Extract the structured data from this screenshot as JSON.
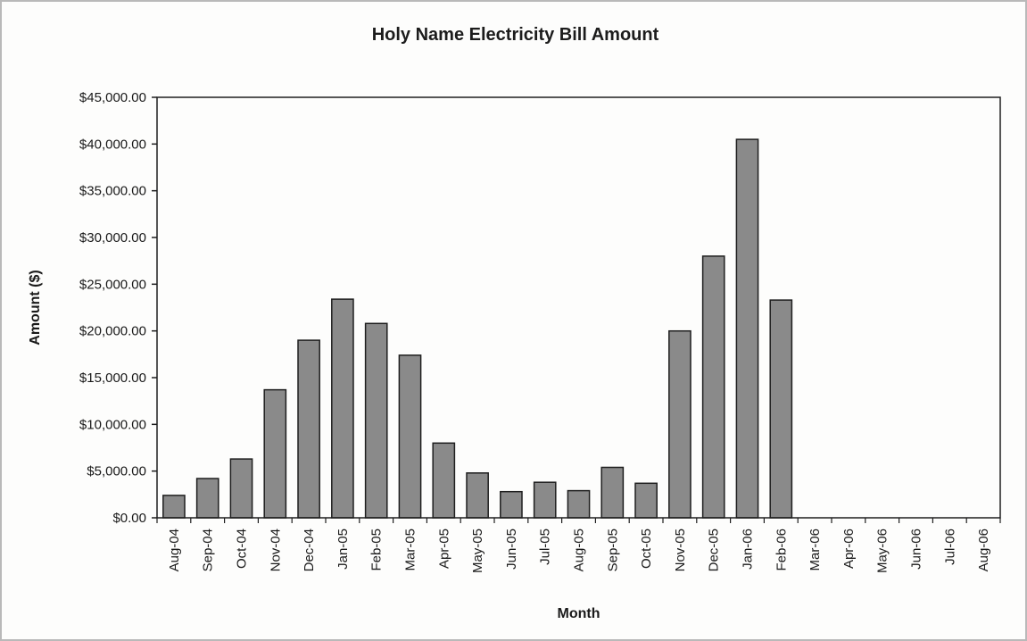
{
  "chart_data": {
    "type": "bar",
    "title": "Holy Name Electricity Bill Amount",
    "xlabel": "Month",
    "ylabel": "Amount ($)",
    "ylim": [
      0,
      45000
    ],
    "yticks": [
      0,
      5000,
      10000,
      15000,
      20000,
      25000,
      30000,
      35000,
      40000,
      45000
    ],
    "ytick_labels": [
      "$0.00",
      "$5,000.00",
      "$10,000.00",
      "$15,000.00",
      "$20,000.00",
      "$25,000.00",
      "$30,000.00",
      "$35,000.00",
      "$40,000.00",
      "$45,000.00"
    ],
    "categories": [
      "Aug-04",
      "Sep-04",
      "Oct-04",
      "Nov-04",
      "Dec-04",
      "Jan-05",
      "Feb-05",
      "Mar-05",
      "Apr-05",
      "May-05",
      "Jun-05",
      "Jul-05",
      "Aug-05",
      "Sep-05",
      "Oct-05",
      "Nov-05",
      "Dec-05",
      "Jan-06",
      "Feb-06",
      "Mar-06",
      "Apr-06",
      "May-06",
      "Jun-06",
      "Jul-06",
      "Aug-06"
    ],
    "values": [
      2400,
      4200,
      6300,
      13700,
      19000,
      23400,
      20800,
      17400,
      8000,
      4800,
      2800,
      3800,
      2900,
      5400,
      3700,
      20000,
      28000,
      40500,
      23300,
      0,
      0,
      0,
      0,
      0,
      0
    ],
    "grid": false,
    "legend": "none",
    "colors": {
      "bar_fill": "#8a8a8a",
      "bar_stroke": "#1e1e1e",
      "axis": "#1e1e1e",
      "text": "#1a1a1a"
    }
  }
}
